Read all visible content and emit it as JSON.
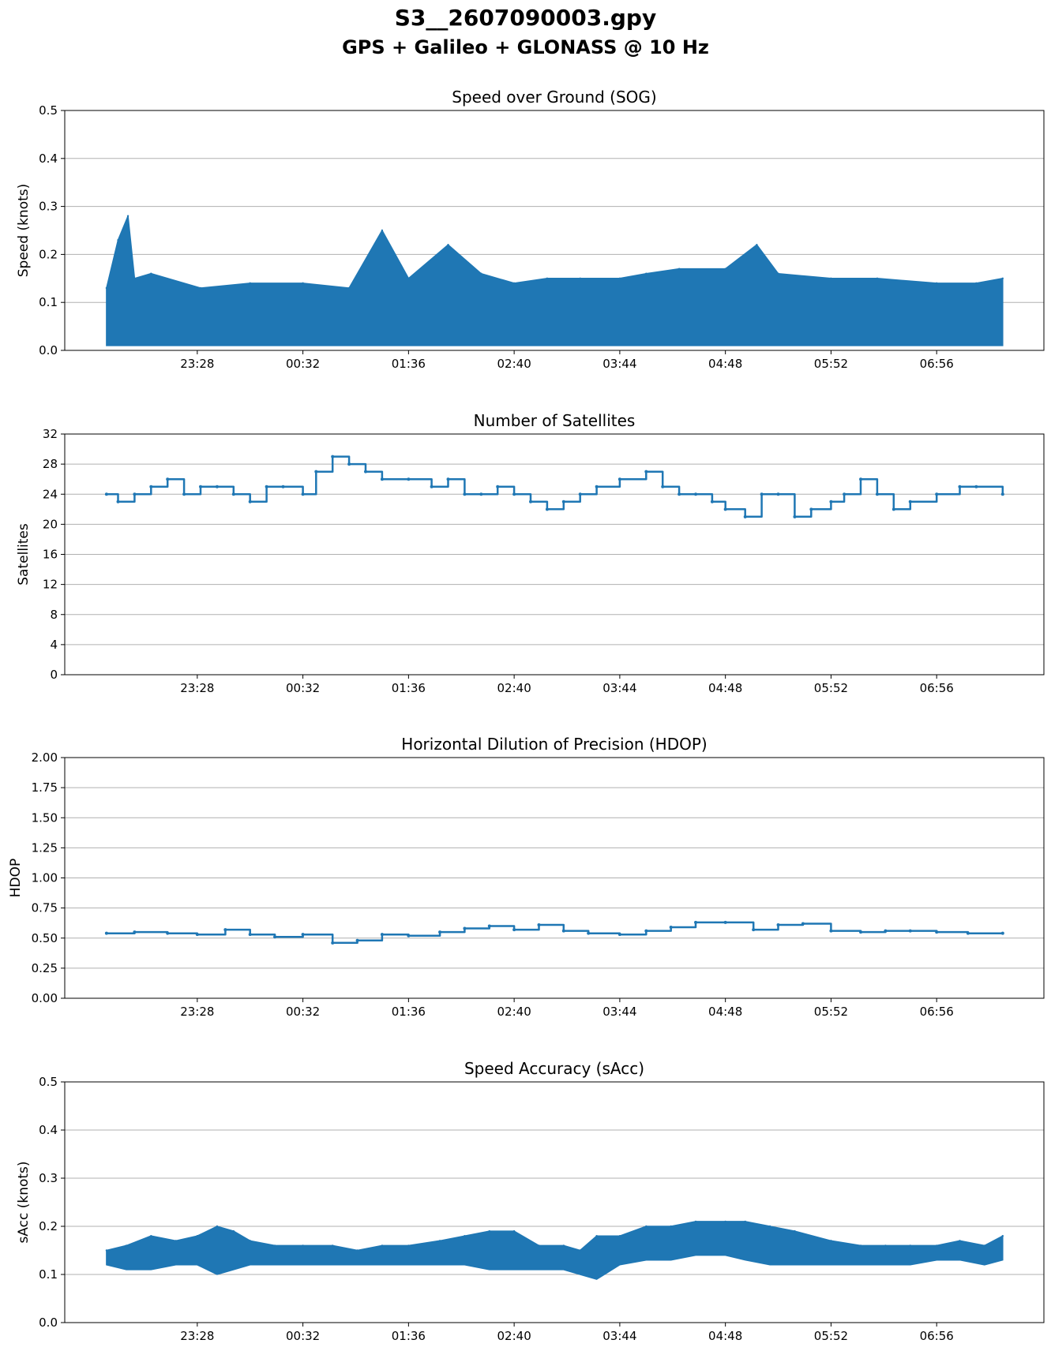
{
  "figure": {
    "title": "S3__2607090003.gpy",
    "subtitle": "GPS + Galileo + GLONASS @ 10 Hz"
  },
  "colors": {
    "series": "#1f77b4",
    "grid": "#b0b0b0",
    "axes": "#000000"
  },
  "chart_data": [
    {
      "type": "area",
      "title": "Speed over Ground (SOG)",
      "xlabel": "",
      "ylabel": "Speed (knots)",
      "ylim": [
        0,
        0.5
      ],
      "yticks": [
        0.0,
        0.1,
        0.2,
        0.3,
        0.4,
        0.5
      ],
      "ytick_labels": [
        "0.0",
        "0.1",
        "0.2",
        "0.3",
        "0.4",
        "0.5"
      ],
      "xticks": [
        "23:28",
        "00:32",
        "01:36",
        "02:40",
        "03:44",
        "04:48",
        "05:52",
        "06:56"
      ],
      "x_start": "22:33",
      "x_end": "07:36",
      "grid": "horizontal",
      "series": [
        {
          "x": [
            "22:33",
            "22:40",
            "22:46",
            "22:50",
            "23:00",
            "23:30",
            "00:00",
            "00:32",
            "01:00",
            "01:20",
            "01:36",
            "02:00",
            "02:20",
            "02:40",
            "03:00",
            "03:20",
            "03:44",
            "04:00",
            "04:20",
            "04:48",
            "05:07",
            "05:20",
            "05:52",
            "06:20",
            "06:56",
            "07:20",
            "07:36"
          ],
          "upper": [
            0.13,
            0.23,
            0.28,
            0.15,
            0.16,
            0.13,
            0.14,
            0.14,
            0.13,
            0.25,
            0.15,
            0.22,
            0.16,
            0.14,
            0.15,
            0.15,
            0.15,
            0.16,
            0.17,
            0.17,
            0.22,
            0.16,
            0.15,
            0.15,
            0.14,
            0.14,
            0.15
          ],
          "lower": [
            0.01,
            0.01,
            0.01,
            0.01,
            0.01,
            0.01,
            0.01,
            0.01,
            0.01,
            0.01,
            0.01,
            0.01,
            0.01,
            0.01,
            0.01,
            0.01,
            0.01,
            0.01,
            0.01,
            0.01,
            0.01,
            0.01,
            0.01,
            0.01,
            0.01,
            0.01,
            0.01
          ]
        }
      ]
    },
    {
      "type": "line",
      "title": "Number of Satellites",
      "xlabel": "",
      "ylabel": "Satellites",
      "ylim": [
        0,
        32
      ],
      "yticks": [
        0,
        4,
        8,
        12,
        16,
        20,
        24,
        28,
        32
      ],
      "ytick_labels": [
        "0",
        "4",
        "8",
        "12",
        "16",
        "20",
        "24",
        "28",
        "32"
      ],
      "xticks": [
        "23:28",
        "00:32",
        "01:36",
        "02:40",
        "03:44",
        "04:48",
        "05:52",
        "06:56"
      ],
      "x_start": "22:33",
      "x_end": "07:36",
      "grid": "horizontal",
      "series": [
        {
          "x": [
            "22:33",
            "22:40",
            "22:50",
            "23:00",
            "23:10",
            "23:20",
            "23:30",
            "23:40",
            "23:50",
            "00:00",
            "00:10",
            "00:20",
            "00:32",
            "00:40",
            "00:50",
            "01:00",
            "01:10",
            "01:20",
            "01:36",
            "01:50",
            "02:00",
            "02:10",
            "02:20",
            "02:30",
            "02:40",
            "02:50",
            "03:00",
            "03:10",
            "03:20",
            "03:30",
            "03:44",
            "04:00",
            "04:10",
            "04:20",
            "04:30",
            "04:40",
            "04:48",
            "05:00",
            "05:10",
            "05:20",
            "05:30",
            "05:40",
            "05:52",
            "06:00",
            "06:10",
            "06:20",
            "06:30",
            "06:40",
            "06:56",
            "07:10",
            "07:20",
            "07:36"
          ],
          "y": [
            24,
            23,
            24,
            25,
            26,
            24,
            25,
            25,
            24,
            23,
            25,
            25,
            24,
            27,
            29,
            28,
            27,
            26,
            26,
            25,
            26,
            24,
            24,
            25,
            24,
            23,
            22,
            23,
            24,
            25,
            26,
            27,
            25,
            24,
            24,
            23,
            22,
            21,
            24,
            24,
            21,
            22,
            23,
            24,
            26,
            24,
            22,
            23,
            24,
            25,
            25,
            24
          ]
        }
      ]
    },
    {
      "type": "line",
      "title": "Horizontal Dilution of Precision (HDOP)",
      "xlabel": "",
      "ylabel": "HDOP",
      "ylim": [
        0,
        2
      ],
      "yticks": [
        0,
        0.25,
        0.5,
        0.75,
        1.0,
        1.25,
        1.5,
        1.75,
        2.0
      ],
      "ytick_labels": [
        "0.00",
        "0.25",
        "0.50",
        "0.75",
        "1.00",
        "1.25",
        "1.50",
        "1.75",
        "2.00"
      ],
      "xticks": [
        "23:28",
        "00:32",
        "01:36",
        "02:40",
        "03:44",
        "04:48",
        "05:52",
        "06:56"
      ],
      "x_start": "22:33",
      "x_end": "07:36",
      "grid": "horizontal",
      "series": [
        {
          "x": [
            "22:33",
            "22:50",
            "23:10",
            "23:28",
            "23:45",
            "00:00",
            "00:15",
            "00:32",
            "00:50",
            "01:05",
            "01:20",
            "01:36",
            "01:55",
            "02:10",
            "02:25",
            "02:40",
            "02:55",
            "03:10",
            "03:25",
            "03:44",
            "04:00",
            "04:15",
            "04:30",
            "04:48",
            "05:05",
            "05:20",
            "05:35",
            "05:52",
            "06:10",
            "06:25",
            "06:40",
            "06:56",
            "07:15",
            "07:36"
          ],
          "y": [
            0.54,
            0.55,
            0.54,
            0.53,
            0.57,
            0.53,
            0.51,
            0.53,
            0.46,
            0.48,
            0.53,
            0.52,
            0.55,
            0.58,
            0.6,
            0.57,
            0.61,
            0.56,
            0.54,
            0.53,
            0.56,
            0.59,
            0.63,
            0.63,
            0.57,
            0.61,
            0.62,
            0.56,
            0.55,
            0.56,
            0.56,
            0.55,
            0.54,
            0.54
          ]
        }
      ]
    },
    {
      "type": "area",
      "title": "Speed Accuracy (sAcc)",
      "xlabel": "",
      "ylabel": "sAcc (knots)",
      "ylim": [
        0,
        0.5
      ],
      "yticks": [
        0.0,
        0.1,
        0.2,
        0.3,
        0.4,
        0.5
      ],
      "ytick_labels": [
        "0.0",
        "0.1",
        "0.2",
        "0.3",
        "0.4",
        "0.5"
      ],
      "xticks": [
        "23:28",
        "00:32",
        "01:36",
        "02:40",
        "03:44",
        "04:48",
        "05:52",
        "06:56"
      ],
      "x_start": "22:33",
      "x_end": "07:36",
      "grid": "horizontal",
      "series": [
        {
          "x": [
            "22:33",
            "22:45",
            "23:00",
            "23:15",
            "23:28",
            "23:40",
            "23:50",
            "00:00",
            "00:15",
            "00:32",
            "00:50",
            "01:05",
            "01:20",
            "01:36",
            "01:55",
            "02:10",
            "02:25",
            "02:40",
            "02:55",
            "03:10",
            "03:20",
            "03:30",
            "03:44",
            "04:00",
            "04:15",
            "04:30",
            "04:48",
            "05:00",
            "05:15",
            "05:30",
            "05:52",
            "06:10",
            "06:25",
            "06:40",
            "06:56",
            "07:10",
            "07:25",
            "07:36"
          ],
          "upper": [
            0.15,
            0.16,
            0.18,
            0.17,
            0.18,
            0.2,
            0.19,
            0.17,
            0.16,
            0.16,
            0.16,
            0.15,
            0.16,
            0.16,
            0.17,
            0.18,
            0.19,
            0.19,
            0.16,
            0.16,
            0.15,
            0.18,
            0.18,
            0.2,
            0.2,
            0.21,
            0.21,
            0.21,
            0.2,
            0.19,
            0.17,
            0.16,
            0.16,
            0.16,
            0.16,
            0.17,
            0.16,
            0.18
          ],
          "lower": [
            0.12,
            0.11,
            0.11,
            0.12,
            0.12,
            0.1,
            0.11,
            0.12,
            0.12,
            0.12,
            0.12,
            0.12,
            0.12,
            0.12,
            0.12,
            0.12,
            0.11,
            0.11,
            0.11,
            0.11,
            0.1,
            0.09,
            0.12,
            0.13,
            0.13,
            0.14,
            0.14,
            0.13,
            0.12,
            0.12,
            0.12,
            0.12,
            0.12,
            0.12,
            0.13,
            0.13,
            0.12,
            0.13
          ]
        }
      ]
    }
  ]
}
